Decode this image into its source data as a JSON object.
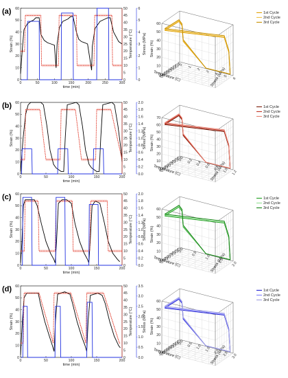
{
  "figure": {
    "panels": [
      {
        "label": "(a)",
        "time_plot": {
          "xlabel": "time (min)",
          "ylabel_strain": "Strain (%)",
          "ylabel_temp": "Temperature (°C)",
          "ylabel_stress": "Stress (MPa)",
          "x_ticks": [
            "0",
            "50",
            "100",
            "150",
            "200",
            "250",
            "300"
          ],
          "strain_ticks": [
            "0",
            "10",
            "20",
            "30",
            "40",
            "50",
            "60"
          ],
          "temp_ticks": [
            "0",
            "5",
            "10",
            "15",
            "20",
            "25",
            "30",
            "35",
            "40",
            "45",
            "50"
          ],
          "stress_ticks": [
            "0",
            "1",
            "2",
            "3",
            "4",
            "5",
            "6"
          ]
        },
        "plot3d": {
          "zlabel": "Strain (%)",
          "xlabel": "Temperature (C)",
          "ylabel": "Stress (MPa)",
          "z_ticks": [
            "0",
            "10",
            "20",
            "30",
            "40",
            "50",
            "60"
          ],
          "x_ticks": [
            "45",
            "40",
            "35",
            "30",
            "25",
            "20",
            "15",
            "10",
            "5"
          ],
          "y_ticks": [
            "0",
            "1",
            "2",
            "3",
            "4",
            "5",
            "6"
          ],
          "legend": [
            "1st Cycle",
            "2nd Cycle",
            "3rd Cycle"
          ]
        }
      },
      {
        "label": "(b)",
        "time_plot": {
          "xlabel": "time (min)",
          "ylabel_strain": "Strain (%)",
          "ylabel_temp": "Temperature (°C)",
          "ylabel_stress": "Stress (MPa)",
          "x_ticks": [
            "0",
            "50",
            "100",
            "150",
            "200"
          ],
          "strain_ticks": [
            "0",
            "10",
            "20",
            "30",
            "40",
            "50",
            "60"
          ],
          "temp_ticks": [
            "0",
            "5",
            "10",
            "15",
            "20",
            "25",
            "30",
            "35",
            "40",
            "45",
            "50"
          ],
          "stress_ticks": [
            "0.0",
            "0.2",
            "0.4",
            "0.6",
            "0.8",
            "1.0",
            "1.2",
            "1.4",
            "1.6",
            "1.8",
            "2.0"
          ]
        },
        "plot3d": {
          "zlabel": "Strain (%)",
          "xlabel": "Temperature (C)",
          "ylabel": "Stress (MPa)",
          "z_ticks": [
            "0",
            "10",
            "20",
            "30",
            "40",
            "50",
            "60",
            "70"
          ],
          "x_ticks": [
            "45",
            "40",
            "35",
            "30",
            "25",
            "20",
            "15",
            "10"
          ],
          "y_ticks": [
            "0.0",
            "0.2",
            "0.4",
            "0.6",
            "0.8",
            "1.0",
            "1.2"
          ],
          "legend": [
            "1st Cycle",
            "2nd Cycle",
            "3rd Cycle"
          ]
        }
      },
      {
        "label": "(c)",
        "time_plot": {
          "xlabel": "time (min)",
          "ylabel_strain": "Strain (%)",
          "ylabel_temp": "Temperature (°C)",
          "ylabel_stress": "Stress (MPa)",
          "x_ticks": [
            "0",
            "50",
            "100",
            "150",
            "200"
          ],
          "strain_ticks": [
            "0",
            "10",
            "20",
            "30",
            "40",
            "50",
            "60"
          ],
          "temp_ticks": [
            "0",
            "5",
            "10",
            "15",
            "20",
            "25",
            "30",
            "35",
            "40",
            "45",
            "50"
          ],
          "stress_ticks": [
            "0.0",
            "0.2",
            "0.4",
            "0.6",
            "0.8",
            "1.0",
            "1.2",
            "1.4",
            "1.6",
            "1.8",
            "2.0"
          ]
        },
        "plot3d": {
          "zlabel": "Strain (%)",
          "xlabel": "Temperature (C)",
          "ylabel": "Stress (MPa)",
          "z_ticks": [
            "0",
            "10",
            "20",
            "30",
            "40",
            "50",
            "60"
          ],
          "x_ticks": [
            "45",
            "40",
            "35",
            "30",
            "25",
            "20",
            "15",
            "10"
          ],
          "y_ticks": [
            "0.0",
            "0.5",
            "1.0",
            "1.5",
            "2.0"
          ],
          "legend": [
            "1st Cycle",
            "2nd Cycle",
            "3rd Cycle"
          ]
        }
      },
      {
        "label": "(d)",
        "time_plot": {
          "xlabel": "time (min)",
          "ylabel_strain": "Strain (%)",
          "ylabel_temp": "Temperature (°C)",
          "ylabel_stress": "Stress (MPa)",
          "x_ticks": [
            "0",
            "50",
            "100",
            "150",
            "200"
          ],
          "strain_ticks": [
            "0",
            "10",
            "20",
            "30",
            "40",
            "50",
            "60"
          ],
          "temp_ticks": [
            "0",
            "5",
            "10",
            "15",
            "20",
            "25",
            "30",
            "35",
            "40",
            "45",
            "50"
          ],
          "stress_ticks": [
            "0.0",
            "0.5",
            "1.0",
            "1.5",
            "2.0",
            "2.5",
            "3.0",
            "3.5"
          ]
        },
        "plot3d": {
          "zlabel": "Strain (%)",
          "xlabel": "Temperature (C)",
          "ylabel": "Stress (MPa)",
          "z_ticks": [
            "0",
            "10",
            "20",
            "30",
            "40",
            "50",
            "60"
          ],
          "x_ticks": [
            "50",
            "45",
            "40",
            "35",
            "30",
            "25",
            "20",
            "15",
            "10"
          ],
          "y_ticks": [
            "0.0",
            "0.5",
            "1.0",
            "1.5",
            "2.0",
            "2.5",
            "3.0"
          ],
          "legend": [
            "1st Cycle",
            "2nd Cycle",
            "3rd Cycle"
          ]
        }
      }
    ]
  },
  "chart_data": [
    {
      "type": "line",
      "panel": "(a)",
      "xlim": [
        0,
        300
      ],
      "ylim_strain": [
        0,
        60
      ],
      "ylim_temp": [
        0,
        50
      ],
      "ylim_stress": [
        0,
        6
      ],
      "series": [
        {
          "name": "Strain",
          "color": "#000000",
          "x": [
            0,
            5,
            10,
            20,
            30,
            38,
            45,
            55,
            60,
            70,
            80,
            90,
            100,
            105,
            108,
            115,
            125,
            140,
            148,
            155,
            165,
            172,
            180,
            190,
            198,
            210,
            212,
            220,
            235,
            250,
            258,
            265,
            275,
            290,
            300
          ],
          "y": [
            5,
            25,
            42,
            47,
            49,
            50,
            52,
            52,
            38,
            33,
            31,
            30,
            29,
            10,
            30,
            44,
            49,
            51,
            53,
            53,
            40,
            34,
            32,
            31,
            30,
            8,
            28,
            43,
            49,
            51,
            52,
            52,
            40,
            32,
            30
          ]
        },
        {
          "name": "Temperature",
          "color": "#e03020",
          "x": [
            0,
            12,
            14,
            40,
            42,
            60,
            62,
            100,
            102,
            112,
            114,
            145,
            147,
            165,
            167,
            205,
            207,
            217,
            219,
            250,
            252,
            270,
            272,
            300
          ],
          "y": [
            20,
            20,
            45,
            45,
            45,
            45,
            10,
            10,
            10,
            10,
            45,
            45,
            45,
            45,
            10,
            10,
            10,
            10,
            45,
            45,
            45,
            45,
            10,
            10
          ]
        },
        {
          "name": "Stress",
          "color": "#2030e0",
          "x": [
            0,
            20,
            21,
            55,
            56,
            120,
            121,
            155,
            156,
            225,
            226,
            260,
            261,
            300
          ],
          "y": [
            0,
            0,
            4.9,
            4.9,
            0,
            0,
            5.6,
            5.6,
            0,
            0,
            6.0,
            6.0,
            0,
            0
          ]
        }
      ]
    },
    {
      "type": "line",
      "panel": "(b)",
      "xlim": [
        0,
        200
      ],
      "ylim_strain": [
        0,
        60
      ],
      "ylim_temp": [
        0,
        50
      ],
      "ylim_stress": [
        0,
        2
      ],
      "series": [
        {
          "name": "Strain",
          "color": "#000000",
          "x": [
            0,
            5,
            10,
            15,
            20,
            40,
            45,
            52,
            58,
            65,
            70,
            80,
            85,
            88,
            92,
            110,
            115,
            122,
            128,
            135,
            140,
            150,
            155,
            158,
            162,
            180,
            185,
            192,
            198,
            200
          ],
          "y": [
            2,
            30,
            50,
            58,
            60,
            60,
            58,
            40,
            20,
            8,
            5,
            2,
            2,
            30,
            58,
            60,
            58,
            40,
            20,
            8,
            5,
            2,
            2,
            30,
            58,
            60,
            58,
            40,
            20,
            10
          ]
        },
        {
          "name": "Temperature",
          "color": "#e03020",
          "x": [
            0,
            8,
            10,
            36,
            38,
            50,
            52,
            78,
            80,
            106,
            108,
            120,
            122,
            148,
            150,
            176,
            178,
            200
          ],
          "y": [
            10,
            10,
            45,
            45,
            45,
            10,
            10,
            10,
            45,
            45,
            45,
            10,
            10,
            10,
            45,
            45,
            45,
            10
          ]
        },
        {
          "name": "Stress",
          "color": "#2030e0",
          "x": [
            0,
            2,
            3,
            22,
            23,
            35,
            73,
            74,
            93,
            94,
            143,
            144,
            163,
            164,
            200
          ],
          "y": [
            0,
            0,
            0.7,
            0.7,
            0,
            0,
            0,
            0.7,
            0.7,
            0,
            0,
            0.7,
            0.7,
            0,
            0
          ]
        }
      ]
    },
    {
      "type": "line",
      "panel": "(c)",
      "xlim": [
        0,
        220
      ],
      "ylim_strain": [
        0,
        60
      ],
      "ylim_temp": [
        0,
        50
      ],
      "ylim_stress": [
        0,
        2
      ],
      "series": [
        {
          "name": "Strain",
          "color": "#000000",
          "x": [
            0,
            3,
            6,
            10,
            20,
            30,
            36,
            45,
            55,
            65,
            72,
            75,
            78,
            82,
            90,
            100,
            110,
            118,
            128,
            138,
            145,
            148,
            151,
            155,
            162,
            172,
            182,
            190,
            200,
            210,
            215
          ],
          "y": [
            2,
            20,
            50,
            55,
            55,
            55,
            50,
            35,
            20,
            10,
            5,
            2,
            20,
            52,
            55,
            55,
            52,
            35,
            20,
            10,
            5,
            2,
            20,
            50,
            54,
            52,
            35,
            20,
            10,
            5,
            3
          ]
        },
        {
          "name": "Temperature",
          "color": "#e03020",
          "x": [
            0,
            8,
            10,
            38,
            40,
            75,
            77,
            112,
            114,
            150,
            152,
            188,
            190,
            220
          ],
          "y": [
            10,
            10,
            45,
            45,
            10,
            10,
            45,
            45,
            10,
            10,
            45,
            45,
            10,
            10
          ]
        },
        {
          "name": "Stress",
          "color": "#2030e0",
          "x": [
            0,
            4,
            5,
            24,
            25,
            76,
            77,
            96,
            97,
            148,
            149,
            168,
            169,
            220
          ],
          "y": [
            0,
            0,
            1.9,
            1.9,
            0,
            0,
            1.9,
            1.9,
            0,
            0,
            1.7,
            1.7,
            0,
            0
          ]
        }
      ]
    },
    {
      "type": "line",
      "panel": "(d)",
      "xlim": [
        0,
        230
      ],
      "ylim_strain": [
        0,
        60
      ],
      "ylim_temp": [
        0,
        50
      ],
      "ylim_stress": [
        0,
        3.5
      ],
      "series": [
        {
          "name": "Strain",
          "color": "#000000",
          "x": [
            0,
            4,
            8,
            14,
            30,
            40,
            45,
            55,
            65,
            72,
            76,
            79,
            84,
            100,
            112,
            118,
            128,
            138,
            146,
            150,
            153,
            158,
            175,
            185,
            192,
            202,
            212,
            222,
            226
          ],
          "y": [
            2,
            30,
            50,
            54,
            54,
            54,
            45,
            30,
            18,
            10,
            5,
            30,
            53,
            55,
            53,
            45,
            30,
            18,
            10,
            5,
            30,
            52,
            54,
            52,
            45,
            30,
            18,
            10,
            8
          ]
        },
        {
          "name": "Temperature",
          "color": "#e03020",
          "x": [
            0,
            6,
            8,
            40,
            42,
            74,
            76,
            112,
            114,
            148,
            150,
            186,
            188,
            224,
            226
          ],
          "y": [
            10,
            10,
            45,
            45,
            45,
            10,
            45,
            45,
            45,
            10,
            45,
            45,
            45,
            10,
            10
          ]
        },
        {
          "name": "Stress",
          "color": "#2030e0",
          "x": [
            0,
            5,
            6,
            15,
            16,
            78,
            79,
            90,
            91,
            150,
            151,
            162,
            163,
            230
          ],
          "y": [
            0,
            0,
            2.5,
            2.5,
            0,
            0,
            2.5,
            2.5,
            0,
            0,
            2.7,
            2.7,
            0,
            0
          ]
        }
      ]
    }
  ],
  "colors": {
    "strain": "#000000",
    "temperature": "#e03020",
    "temperature_band": "#f6c9c4",
    "stress": "#2030e0",
    "cycles_a": [
      "#e0a000",
      "#f0c040",
      "#c89000"
    ],
    "cycles_b": [
      "#7a1a08",
      "#c03020",
      "#e88070"
    ],
    "cycles_c": [
      "#20a020",
      "#90e090",
      "#108010"
    ],
    "cycles_d": [
      "#2020d0",
      "#8080ff",
      "#a0a0e0"
    ]
  }
}
